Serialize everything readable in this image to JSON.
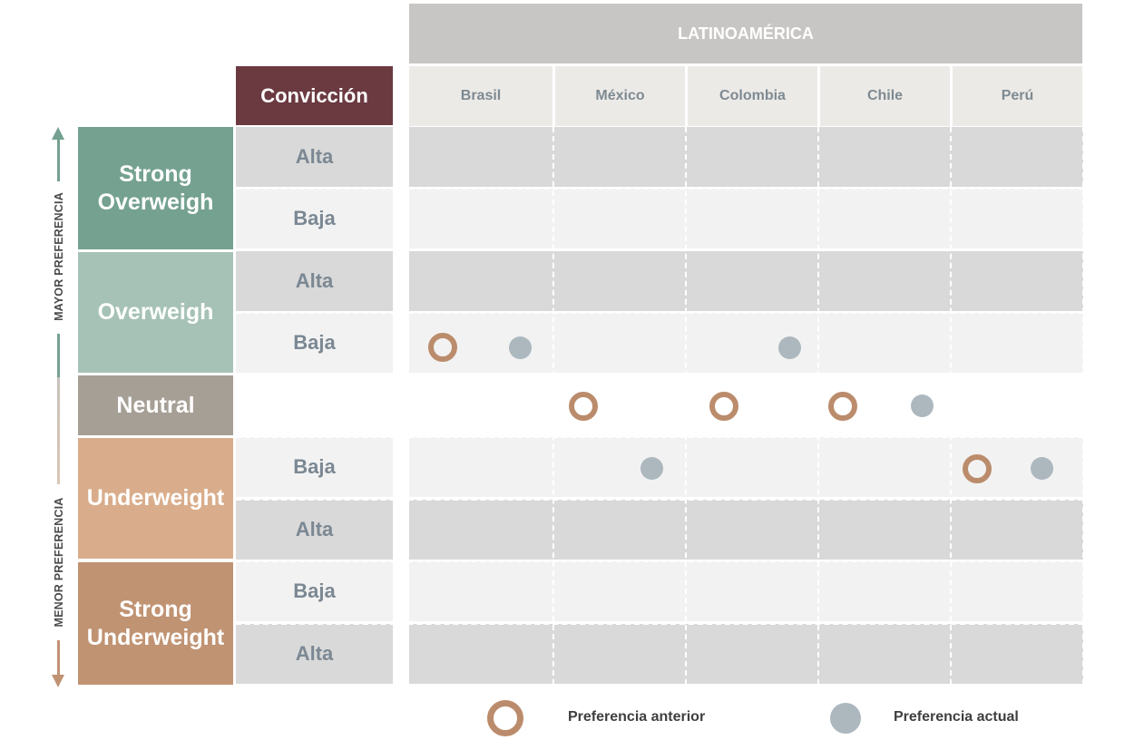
{
  "region": "LATINOAMÉRICA",
  "conviction_header": "Convicción",
  "countries": [
    "Brasil",
    "México",
    "Colombia",
    "Chile",
    "Perú"
  ],
  "side_labels": {
    "top": "MAYOR PREFERENCIA",
    "bottom": "MENOR PREFERENCIA"
  },
  "categories": [
    {
      "label": "Strong\nOverweigh",
      "color": "#74a190"
    },
    {
      "label": "Overweigh",
      "color": "#a6c2b6"
    },
    {
      "label": "Neutral",
      "color": "#a69f95"
    },
    {
      "label": "Underweight",
      "color": "#d9ad8b"
    },
    {
      "label": "Strong\nUnderweight",
      "color": "#c09373"
    }
  ],
  "rows": [
    {
      "category": "Strong Overweigh",
      "conviction": "Alta"
    },
    {
      "category": "Strong Overweigh",
      "conviction": "Baja"
    },
    {
      "category": "Overweigh",
      "conviction": "Alta"
    },
    {
      "category": "Overweigh",
      "conviction": "Baja"
    },
    {
      "category": "Neutral",
      "conviction": ""
    },
    {
      "category": "Underweight",
      "conviction": "Baja"
    },
    {
      "category": "Underweight",
      "conviction": "Alta"
    },
    {
      "category": "Strong Underweight",
      "conviction": "Baja"
    },
    {
      "category": "Strong Underweight",
      "conviction": "Alta"
    }
  ],
  "placements": [
    {
      "country": "Brasil",
      "previous": "Overweigh Baja",
      "current": "Overweigh Baja"
    },
    {
      "country": "México",
      "previous": "Neutral",
      "current": "Underweight Baja"
    },
    {
      "country": "Colombia",
      "previous": "Neutral",
      "current": "Overweigh Baja"
    },
    {
      "country": "Chile",
      "previous": "Neutral",
      "current": "Neutral"
    },
    {
      "country": "Perú",
      "previous": "Underweight Baja",
      "current": "Underweight Baja"
    }
  ],
  "legend": {
    "previous": "Preferencia anterior",
    "current": "Preferencia actual"
  }
}
